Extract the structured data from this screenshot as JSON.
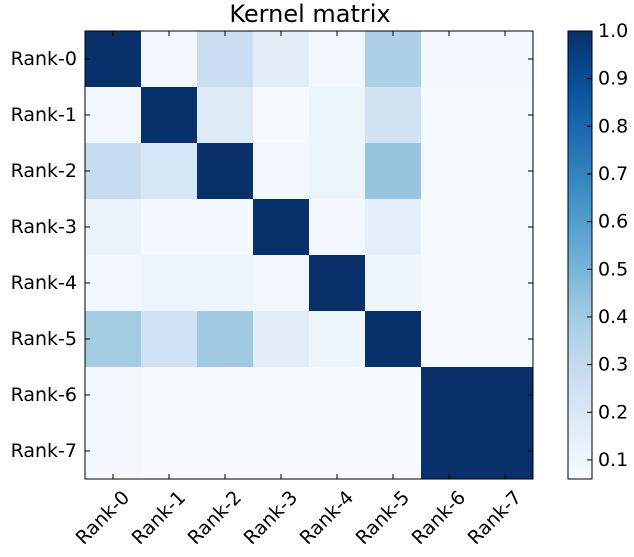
{
  "chart_data": {
    "type": "heatmap",
    "title": "Kernel matrix",
    "xlabel": "",
    "ylabel": "",
    "x_categories": [
      "Rank-0",
      "Rank-1",
      "Rank-2",
      "Rank-3",
      "Rank-4",
      "Rank-5",
      "Rank-6",
      "Rank-7"
    ],
    "y_categories": [
      "Rank-0",
      "Rank-1",
      "Rank-2",
      "Rank-3",
      "Rank-4",
      "Rank-5",
      "Rank-6",
      "Rank-7"
    ],
    "values": [
      [
        1.0,
        0.09,
        0.27,
        0.16,
        0.09,
        0.37,
        0.08,
        0.08
      ],
      [
        0.09,
        1.0,
        0.18,
        0.07,
        0.11,
        0.24,
        0.07,
        0.07
      ],
      [
        0.29,
        0.21,
        1.0,
        0.09,
        0.11,
        0.43,
        0.07,
        0.07
      ],
      [
        0.12,
        0.08,
        0.08,
        1.0,
        0.09,
        0.15,
        0.07,
        0.07
      ],
      [
        0.09,
        0.11,
        0.11,
        0.09,
        1.0,
        0.1,
        0.07,
        0.07
      ],
      [
        0.4,
        0.25,
        0.41,
        0.16,
        0.1,
        1.0,
        0.07,
        0.07
      ],
      [
        0.08,
        0.07,
        0.07,
        0.07,
        0.07,
        0.07,
        1.0,
        1.0
      ],
      [
        0.08,
        0.07,
        0.07,
        0.07,
        0.07,
        0.07,
        1.0,
        1.0
      ]
    ],
    "colormap": "Blues",
    "colorbar": {
      "min": 0.06,
      "max": 1.0,
      "ticks": [
        0.1,
        0.2,
        0.3,
        0.4,
        0.5,
        0.6,
        0.7,
        0.8,
        0.9,
        1.0
      ],
      "tick_labels": [
        "0.1",
        "0.2",
        "0.3",
        "0.4",
        "0.5",
        "0.6",
        "0.7",
        "0.8",
        "0.9",
        "1.0"
      ]
    },
    "x_tick_rotation": 45
  }
}
